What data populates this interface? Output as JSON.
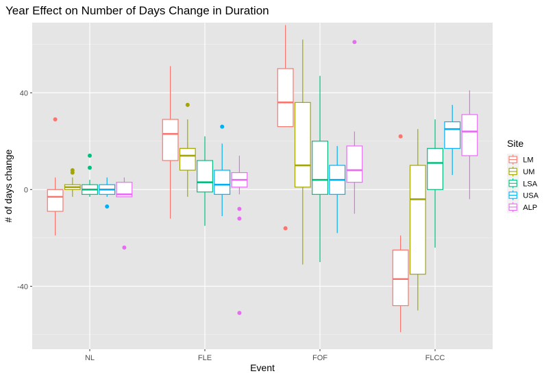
{
  "chart_data": {
    "type": "boxplot",
    "title": "Year Effect on Number of Days Change in Duration",
    "xlabel": "Event",
    "ylabel": "# of days change",
    "categories": [
      "NL",
      "FLE",
      "FOF",
      "FLCC"
    ],
    "ylim": [
      -66,
      69
    ],
    "yticks": [
      -40,
      0,
      40
    ],
    "legend": {
      "title": "Site",
      "placement": "right"
    },
    "colors": {
      "panel": "#e5e5e5",
      "grid_major": "#ffffff",
      "grid_minor": "#f2f2f2"
    },
    "series": [
      {
        "name": "LM",
        "color": "#f8766d",
        "boxes": [
          {
            "min": -19,
            "q1": -9,
            "median": -3,
            "q3": 0,
            "max": 5,
            "outliers": [
              29
            ]
          },
          {
            "min": -12,
            "q1": 12,
            "median": 23,
            "q3": 29,
            "max": 51,
            "outliers": []
          },
          {
            "min": 26,
            "q1": 26,
            "median": 36,
            "q3": 50,
            "max": 68,
            "outliers": [
              -16
            ]
          },
          {
            "min": -59,
            "q1": -48,
            "median": -37,
            "q3": -25,
            "max": -19,
            "outliers": [
              22
            ]
          }
        ]
      },
      {
        "name": "UM",
        "color": "#a3a500",
        "boxes": [
          {
            "min": -3,
            "q1": 0,
            "median": 1,
            "q3": 2,
            "max": 5,
            "outliers": [
              7,
              8
            ]
          },
          {
            "min": -3,
            "q1": 8,
            "median": 14,
            "q3": 17,
            "max": 29,
            "outliers": [
              35
            ]
          },
          {
            "min": -31,
            "q1": 1,
            "median": 10,
            "q3": 36,
            "max": 62,
            "outliers": []
          },
          {
            "min": -50,
            "q1": -35,
            "median": -4,
            "q3": 10,
            "max": 25,
            "outliers": []
          }
        ]
      },
      {
        "name": "LSA",
        "color": "#00bf7d",
        "boxes": [
          {
            "min": -3,
            "q1": -2,
            "median": 0,
            "q3": 2,
            "max": 4,
            "outliers": [
              9,
              14
            ]
          },
          {
            "min": -15,
            "q1": -1,
            "median": 3,
            "q3": 12,
            "max": 22,
            "outliers": []
          },
          {
            "min": -30,
            "q1": -2,
            "median": 4,
            "q3": 20,
            "max": 47,
            "outliers": []
          },
          {
            "min": -24,
            "q1": 0,
            "median": 11,
            "q3": 17,
            "max": 29,
            "outliers": []
          }
        ]
      },
      {
        "name": "USA",
        "color": "#00b0f6",
        "boxes": [
          {
            "min": -3,
            "q1": -2,
            "median": 0,
            "q3": 2,
            "max": 5,
            "outliers": [
              -7
            ]
          },
          {
            "min": -11,
            "q1": -2,
            "median": 2,
            "q3": 8,
            "max": 19,
            "outliers": [
              26
            ]
          },
          {
            "min": -18,
            "q1": -2,
            "median": 4,
            "q3": 10,
            "max": 18,
            "outliers": []
          },
          {
            "min": 6,
            "q1": 17,
            "median": 25,
            "q3": 28,
            "max": 35,
            "outliers": []
          }
        ]
      },
      {
        "name": "ALP",
        "color": "#e76bf3",
        "boxes": [
          {
            "min": -3,
            "q1": -3,
            "median": -2,
            "q3": 3,
            "max": 5,
            "outliers": [
              -24
            ]
          },
          {
            "min": -2,
            "q1": 1,
            "median": 4,
            "q3": 7,
            "max": 14,
            "outliers": [
              -8,
              -12,
              -51
            ]
          },
          {
            "min": -10,
            "q1": 3,
            "median": 8,
            "q3": 18,
            "max": 24,
            "outliers": [
              61
            ]
          },
          {
            "min": -4,
            "q1": 14,
            "median": 24,
            "q3": 31,
            "max": 41,
            "outliers": []
          }
        ]
      }
    ]
  }
}
